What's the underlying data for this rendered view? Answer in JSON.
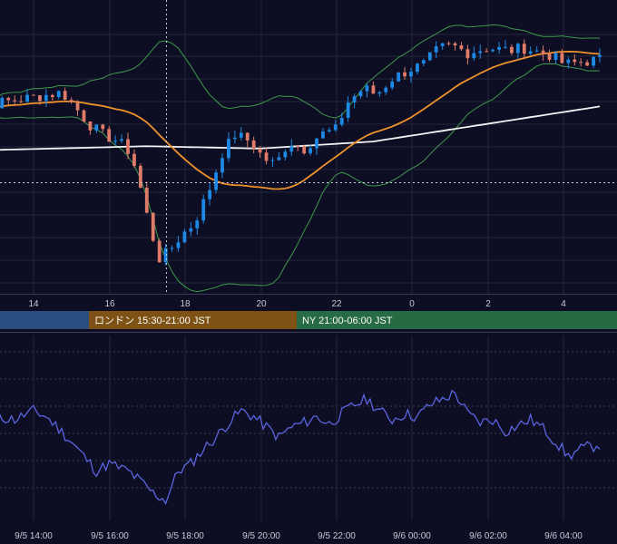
{
  "chart_data": [
    {
      "type": "candlestick",
      "x_ticks": [
        "14",
        "16",
        "18",
        "20",
        "22",
        "0",
        "2",
        "4"
      ],
      "overlays": [
        "bollinger-bands",
        "moving-average-orange",
        "moving-average-white"
      ],
      "colors": {
        "up": "#1e88e5",
        "down": "#e07b6a",
        "ma_fast": "#f0922b",
        "ma_slow": "#f2f2f2",
        "bands": "#3e9a4a",
        "background": "#0d0e23",
        "grid": "#23263d"
      },
      "grid": true,
      "shape_note": "",
      "close_profile": [
        [
          "9/5 12:30",
          0.7
        ],
        [
          "9/5 13:15",
          0.72
        ],
        [
          "9/5 14:00",
          0.74
        ],
        [
          "9/5 14:45",
          0.76
        ],
        [
          "9/5 15:05",
          0.7
        ],
        [
          "9/5 15:30",
          0.62
        ],
        [
          "9/5 15:50",
          0.58
        ],
        [
          "9/5 16:15",
          0.55
        ],
        [
          "9/5 16:35",
          0.5
        ],
        [
          "9/5 16:50",
          0.35
        ],
        [
          "9/5 17:05",
          0.18
        ],
        [
          "9/5 17:20",
          0.05
        ],
        [
          "9/5 17:35",
          0.08
        ],
        [
          "9/5 17:55",
          0.15
        ],
        [
          "9/5 18:15",
          0.2
        ],
        [
          "9/5 18:40",
          0.35
        ],
        [
          "9/5 19:00",
          0.5
        ],
        [
          "9/5 19:20",
          0.58
        ],
        [
          "9/5 19:45",
          0.55
        ],
        [
          "9/5 20:05",
          0.48
        ],
        [
          "9/5 20:25",
          0.45
        ],
        [
          "9/5 20:45",
          0.55
        ],
        [
          "9/5 21:10",
          0.52
        ],
        [
          "9/5 21:35",
          0.58
        ],
        [
          "9/5 22:00",
          0.6
        ],
        [
          "9/5 22:20",
          0.72
        ],
        [
          "9/5 22:45",
          0.78
        ],
        [
          "9/5 23:05",
          0.75
        ],
        [
          "9/5 23:30",
          0.82
        ],
        [
          "9/6 00:00",
          0.86
        ],
        [
          "9/6 00:20",
          0.88
        ],
        [
          "9/6 00:45",
          0.95
        ],
        [
          "9/6 01:05",
          0.96
        ],
        [
          "9/6 01:30",
          0.93
        ],
        [
          "9/6 02:00",
          0.95
        ],
        [
          "9/6 02:40",
          0.94
        ],
        [
          "9/6 03:00",
          0.95
        ],
        [
          "9/6 03:40",
          0.92
        ],
        [
          "9/6 04:05",
          0.88
        ],
        [
          "9/6 04:30",
          0.89
        ],
        [
          "9/6 05:00",
          0.9
        ]
      ]
    },
    {
      "type": "bar",
      "label": "",
      "segments": [
        {
          "label": "",
          "color": "#284d7e"
        },
        {
          "label": "ロンドン 15:30-21:00 JST",
          "color": "#7e5214"
        },
        {
          "label": "NY 21:00-06:00 JST",
          "color": "#276b44"
        }
      ]
    },
    {
      "type": "line",
      "x_ticks": [
        "9/5 14:00",
        "9/5 16:00",
        "9/5 18:00",
        "9/5 20:00",
        "9/5 22:00",
        "9/6 00:00",
        "9/6 02:00",
        "9/6 04:00"
      ],
      "color": "#5b64e0",
      "grid": true,
      "y_relative": [
        [
          "9/5 12:30",
          0.58
        ],
        [
          "9/5 13:00",
          0.62
        ],
        [
          "9/5 13:30",
          0.6
        ],
        [
          "9/5 14:00",
          0.66
        ],
        [
          "9/5 14:20",
          0.62
        ],
        [
          "9/5 14:40",
          0.54
        ],
        [
          "9/5 15:00",
          0.45
        ],
        [
          "9/5 15:20",
          0.35
        ],
        [
          "9/5 15:40",
          0.25
        ],
        [
          "9/5 16:00",
          0.3
        ],
        [
          "9/5 16:30",
          0.25
        ],
        [
          "9/5 16:50",
          0.18
        ],
        [
          "9/5 17:10",
          0.1
        ],
        [
          "9/5 17:30",
          0.05
        ],
        [
          "9/5 17:50",
          0.25
        ],
        [
          "9/5 18:10",
          0.3
        ],
        [
          "9/5 18:30",
          0.4
        ],
        [
          "9/5 18:50",
          0.48
        ],
        [
          "9/5 19:10",
          0.58
        ],
        [
          "9/5 19:30",
          0.66
        ],
        [
          "9/5 19:50",
          0.62
        ],
        [
          "9/5 20:10",
          0.55
        ],
        [
          "9/5 20:30",
          0.48
        ],
        [
          "9/5 20:50",
          0.55
        ],
        [
          "9/5 21:10",
          0.58
        ],
        [
          "9/5 21:30",
          0.62
        ],
        [
          "9/5 21:50",
          0.57
        ],
        [
          "9/5 22:10",
          0.64
        ],
        [
          "9/5 22:30",
          0.7
        ],
        [
          "9/5 22:50",
          0.74
        ],
        [
          "9/5 23:10",
          0.66
        ],
        [
          "9/5 23:30",
          0.6
        ],
        [
          "9/5 23:50",
          0.64
        ],
        [
          "9/6 00:10",
          0.62
        ],
        [
          "9/6 00:30",
          0.7
        ],
        [
          "9/6 00:50",
          0.74
        ],
        [
          "9/6 01:10",
          0.78
        ],
        [
          "9/6 01:30",
          0.64
        ],
        [
          "9/6 01:50",
          0.58
        ],
        [
          "9/6 02:10",
          0.6
        ],
        [
          "9/6 02:30",
          0.52
        ],
        [
          "9/6 02:50",
          0.56
        ],
        [
          "9/6 03:10",
          0.6
        ],
        [
          "9/6 03:30",
          0.54
        ],
        [
          "9/6 03:50",
          0.45
        ],
        [
          "9/6 04:10",
          0.35
        ],
        [
          "9/6 04:30",
          0.4
        ],
        [
          "9/6 04:50",
          0.42
        ],
        [
          "9/6 05:10",
          0.45
        ]
      ]
    }
  ]
}
